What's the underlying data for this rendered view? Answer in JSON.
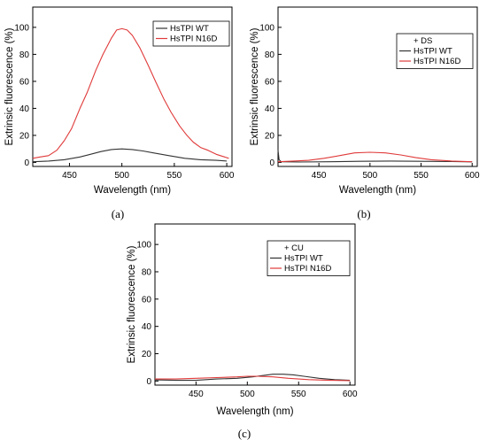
{
  "chart_data": [
    {
      "type": "line",
      "panel_label": "(a)",
      "xlabel": "Wavelength (nm)",
      "ylabel": "Extrinsic fluorescence (%)",
      "xlim": [
        415,
        605
      ],
      "ylim": [
        -3,
        115
      ],
      "xticks": [
        450,
        500,
        550,
        600
      ],
      "yticks": [
        0,
        20,
        40,
        60,
        80,
        100
      ],
      "legend_title": "",
      "legend_position": "top-right",
      "series": [
        {
          "name": "HsTPI WT",
          "color": "#333333",
          "x": [
            415,
            430,
            445,
            460,
            470,
            480,
            490,
            500,
            510,
            520,
            530,
            545,
            560,
            575,
            590,
            600
          ],
          "y": [
            0.5,
            1,
            2,
            4,
            6,
            8,
            9.5,
            10,
            9.5,
            8.5,
            7,
            5,
            3,
            2,
            1.5,
            1
          ]
        },
        {
          "name": "HsTPI N16D",
          "color": "#e03a3a",
          "x": [
            415,
            422,
            430,
            438,
            445,
            452,
            460,
            467,
            475,
            482,
            490,
            495,
            500,
            505,
            510,
            517,
            525,
            532,
            540,
            547,
            555,
            562,
            568,
            575,
            582,
            590,
            598,
            602
          ],
          "y": [
            3,
            4,
            5,
            9,
            16,
            25,
            40,
            52,
            68,
            80,
            92,
            98,
            99,
            98,
            94,
            85,
            72,
            60,
            47,
            37,
            27,
            20,
            15,
            11,
            9,
            6,
            4,
            3
          ]
        }
      ]
    },
    {
      "type": "line",
      "panel_label": "(b)",
      "xlabel": "Wavelength (nm)",
      "ylabel": "Extrinsic fluorescence (%)",
      "xlim": [
        410,
        605
      ],
      "ylim": [
        -3,
        115
      ],
      "xticks": [
        450,
        500,
        550,
        600
      ],
      "yticks": [
        0,
        20,
        40,
        60,
        80,
        100
      ],
      "legend_title": "+ DS",
      "legend_position": "top-right",
      "series": [
        {
          "name": "HsTPI WT",
          "color": "#333333",
          "x": [
            410,
            411,
            413,
            430,
            460,
            490,
            520,
            550,
            580,
            600
          ],
          "y": [
            9,
            2,
            0.5,
            0.3,
            0.5,
            0.8,
            1,
            0.8,
            0.6,
            0.4
          ]
        },
        {
          "name": "HsTPI N16D",
          "color": "#e03a3a",
          "x": [
            410,
            425,
            440,
            455,
            470,
            485,
            500,
            515,
            530,
            545,
            560,
            580,
            600
          ],
          "y": [
            0.5,
            1,
            1.5,
            3,
            5,
            7,
            7.5,
            7,
            5.5,
            3.5,
            2,
            1,
            0.5
          ]
        }
      ]
    },
    {
      "type": "line",
      "panel_label": "(c)",
      "xlabel": "Wavelength (nm)",
      "ylabel": "Extrinsic fluorescence (%)",
      "xlim": [
        410,
        605
      ],
      "ylim": [
        -3,
        115
      ],
      "xticks": [
        450,
        500,
        550,
        600
      ],
      "yticks": [
        0,
        20,
        40,
        60,
        80,
        100
      ],
      "legend_title": "+ CU",
      "legend_position": "top-right",
      "series": [
        {
          "name": "HsTPI WT",
          "color": "#333333",
          "x": [
            410,
            430,
            450,
            470,
            490,
            505,
            515,
            525,
            535,
            545,
            555,
            570,
            585,
            600
          ],
          "y": [
            0.8,
            0.5,
            0.5,
            1.5,
            2,
            3,
            4,
            5,
            5,
            4.5,
            3.5,
            2,
            1,
            0.5
          ]
        },
        {
          "name": "HsTPI N16D",
          "color": "#e03a3a",
          "x": [
            410,
            430,
            450,
            470,
            490,
            500,
            510,
            525,
            540,
            560,
            580,
            600
          ],
          "y": [
            1.5,
            1.5,
            2,
            2.5,
            3,
            3.5,
            3.5,
            3,
            2,
            1,
            0.5,
            0.3
          ]
        }
      ]
    }
  ]
}
